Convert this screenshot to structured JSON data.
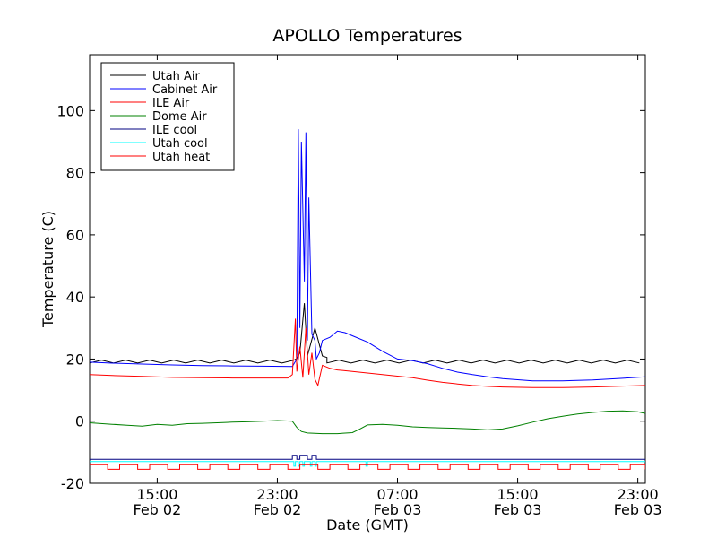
{
  "chart_data": {
    "type": "line",
    "title": "APOLLO Temperatures",
    "xlabel": "Date (GMT)",
    "ylabel": "Temperature (C)",
    "x_unit": "hours since Feb 02 00:00 GMT",
    "xlim": [
      10.5,
      47.5
    ],
    "ylim": [
      -20,
      118
    ],
    "yticks": [
      -20,
      0,
      20,
      40,
      60,
      80,
      100
    ],
    "xticks": [
      {
        "x": 15,
        "line1": "15:00",
        "line2": "Feb 02"
      },
      {
        "x": 23,
        "line1": "23:00",
        "line2": "Feb 02"
      },
      {
        "x": 31,
        "line1": "07:00",
        "line2": "Feb 03"
      },
      {
        "x": 39,
        "line1": "15:00",
        "line2": "Feb 03"
      },
      {
        "x": 47,
        "line1": "23:00",
        "line2": "Feb 03"
      }
    ],
    "legend_position": "top-left",
    "series": [
      {
        "name": "Utah Air",
        "color": "#000000",
        "style": "sawtooth",
        "base": 19.2,
        "amplitude": 0.9,
        "period": 1.6,
        "x": [
          10.5,
          24.3,
          24.5,
          24.8,
          25.0,
          25.5,
          26.0,
          26.3,
          47.5
        ],
        "y": [
          19.2,
          20.2,
          22.0,
          38.0,
          21.0,
          30.0,
          21.0,
          20.5,
          19.2
        ]
      },
      {
        "name": "Cabinet Air",
        "color": "#0000ff",
        "style": "line",
        "x": [
          10.5,
          12,
          14,
          16,
          18,
          20,
          22,
          24,
          24.3,
          24.4,
          24.5,
          24.6,
          24.8,
          24.9,
          25.0,
          25.1,
          25.3,
          25.5,
          25.6,
          25.8,
          26.0,
          26.5,
          27.0,
          27.5,
          28.0,
          29.0,
          30.0,
          31.0,
          32.0,
          33.0,
          34.0,
          35.0,
          36.0,
          37.0,
          38.0,
          40.0,
          42.0,
          44.0,
          46.0,
          47.5
        ],
        "y": [
          19.0,
          18.7,
          18.4,
          18.1,
          17.9,
          17.8,
          17.7,
          17.6,
          20.0,
          94.0,
          30.0,
          90.0,
          45.0,
          93.0,
          26.0,
          72.0,
          28.0,
          26.0,
          20.0,
          22.0,
          26.0,
          27.0,
          29.0,
          28.5,
          27.5,
          25.5,
          22.5,
          20.0,
          19.5,
          18.5,
          17.0,
          15.8,
          15.0,
          14.3,
          13.7,
          13.0,
          13.0,
          13.3,
          13.8,
          14.3
        ]
      },
      {
        "name": "ILE Air",
        "color": "#ff0000",
        "style": "line",
        "x": [
          10.5,
          12,
          14,
          16,
          18,
          20,
          22,
          23.7,
          24.0,
          24.2,
          24.3,
          24.5,
          24.7,
          24.9,
          25.1,
          25.3,
          25.5,
          25.7,
          26.0,
          26.5,
          27.0,
          28.0,
          29.0,
          30.0,
          31.0,
          32.0,
          33.0,
          34.0,
          35.0,
          36.0,
          37.0,
          38.0,
          40.0,
          42.0,
          44.0,
          46.0,
          47.5
        ],
        "y": [
          15.0,
          14.7,
          14.4,
          14.1,
          14.0,
          13.9,
          13.9,
          13.9,
          15.0,
          33.0,
          16.0,
          24.0,
          14.0,
          30.0,
          15.0,
          22.0,
          13.5,
          11.5,
          18.0,
          17.0,
          16.5,
          16.0,
          15.5,
          15.0,
          14.5,
          14.0,
          13.2,
          12.5,
          12.0,
          11.5,
          11.2,
          11.0,
          10.8,
          10.8,
          11.0,
          11.3,
          11.5
        ]
      },
      {
        "name": "Dome Air",
        "color": "#008000",
        "style": "line",
        "x": [
          10.5,
          12,
          13,
          14,
          15,
          16,
          17,
          18,
          19,
          20,
          21,
          22,
          23,
          24.0,
          24.3,
          24.6,
          25.0,
          26,
          27,
          28,
          28.5,
          29,
          30,
          31,
          32,
          33,
          34,
          35,
          36,
          37,
          38,
          39,
          40,
          41,
          42,
          43,
          44,
          45,
          46,
          47,
          47.5
        ],
        "y": [
          -0.5,
          -1.0,
          -1.3,
          -1.6,
          -1.0,
          -1.3,
          -0.8,
          -0.7,
          -0.5,
          -0.3,
          -0.2,
          0.0,
          0.2,
          0.0,
          -2.0,
          -3.3,
          -3.8,
          -4.0,
          -4.0,
          -3.7,
          -2.5,
          -1.2,
          -1.0,
          -1.3,
          -1.8,
          -2.0,
          -2.2,
          -2.3,
          -2.5,
          -2.8,
          -2.5,
          -1.5,
          -0.3,
          0.8,
          1.6,
          2.3,
          2.8,
          3.2,
          3.3,
          3.0,
          2.5
        ]
      },
      {
        "name": "ILE cool",
        "color": "#000080",
        "style": "pulses",
        "base": -12.3,
        "high": -11.0,
        "pulses": [
          [
            24.0,
            24.3
          ],
          [
            24.5,
            25.0
          ],
          [
            25.3,
            25.6
          ]
        ]
      },
      {
        "name": "Utah cool",
        "color": "#00ffff",
        "style": "pulses",
        "base": -13.0,
        "low": -14.5,
        "pulses": [
          [
            24.1,
            24.2
          ],
          [
            24.4,
            24.5
          ],
          [
            24.7,
            24.8
          ],
          [
            25.2,
            25.3
          ],
          [
            25.5,
            25.6
          ],
          [
            28.9,
            29.0
          ]
        ]
      },
      {
        "name": "Utah heat",
        "color": "#ff0000",
        "style": "square",
        "base": -14.0,
        "low": -15.5,
        "period": 2.0,
        "duty": 0.6
      }
    ]
  }
}
